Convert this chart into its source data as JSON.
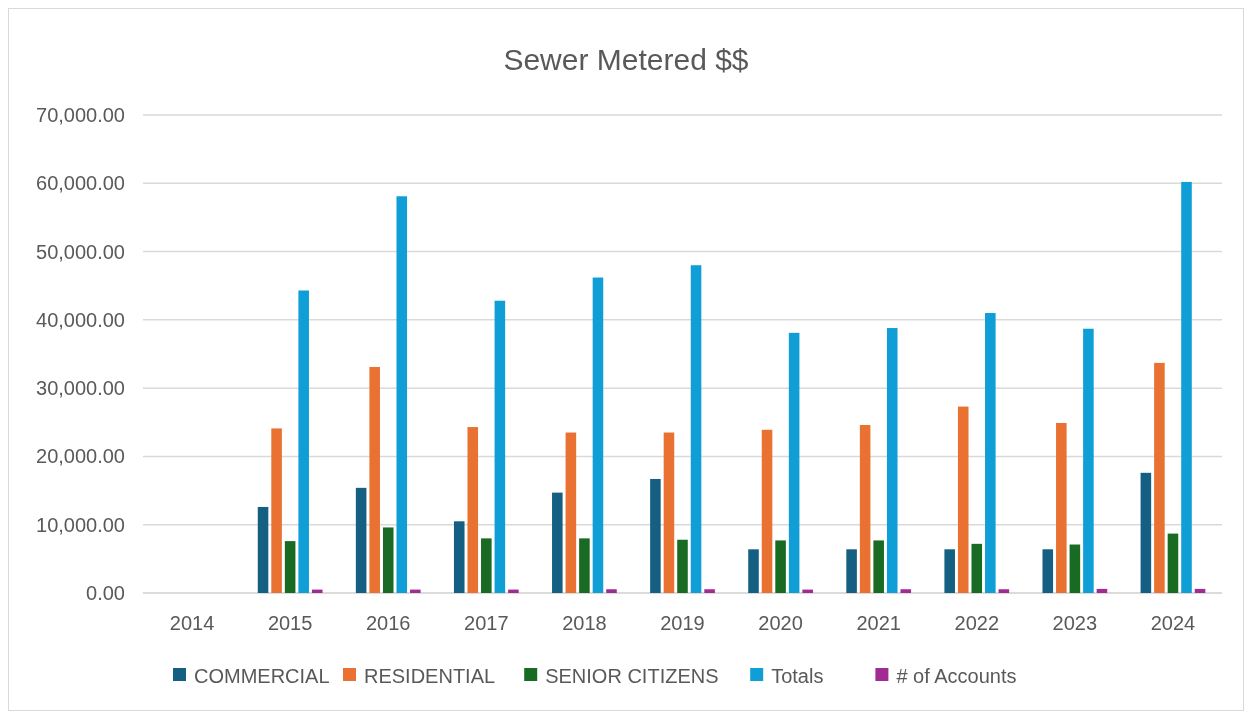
{
  "chart_data": {
    "type": "bar",
    "title": "Sewer Metered $$",
    "categories": [
      "2014",
      "2015",
      "2016",
      "2017",
      "2018",
      "2019",
      "2020",
      "2021",
      "2022",
      "2023",
      "2024"
    ],
    "series": [
      {
        "name": "COMMERCIAL",
        "color": "#156082",
        "values": [
          null,
          12600,
          15400,
          10500,
          14700,
          16700,
          6400,
          6400,
          6400,
          6400,
          17600
        ]
      },
      {
        "name": "RESIDENTIAL",
        "color": "#e97132",
        "values": [
          null,
          24100,
          33100,
          24300,
          23500,
          23500,
          23900,
          24600,
          27300,
          24900,
          33700
        ]
      },
      {
        "name": "SENIOR CITIZENS",
        "color": "#196b24",
        "values": [
          null,
          7600,
          9600,
          8000,
          8000,
          7800,
          7700,
          7700,
          7200,
          7100,
          8700
        ]
      },
      {
        "name": "Totals",
        "color": "#0f9ed5",
        "values": [
          null,
          44300,
          58100,
          42800,
          46200,
          48000,
          38100,
          38800,
          41000,
          38700,
          60200
        ]
      },
      {
        "name": "# of Accounts",
        "color": "#a02b93",
        "values": [
          null,
          500,
          500,
          500,
          550,
          550,
          500,
          550,
          550,
          600,
          600
        ]
      }
    ],
    "ylim": [
      0,
      70000
    ],
    "yticks": [
      {
        "value": 0,
        "label": "0.00"
      },
      {
        "value": 10000,
        "label": "10,000.00"
      },
      {
        "value": 20000,
        "label": "20,000.00"
      },
      {
        "value": 30000,
        "label": "30,000.00"
      },
      {
        "value": 40000,
        "label": "40,000.00"
      },
      {
        "value": 50000,
        "label": "50,000.00"
      },
      {
        "value": 60000,
        "label": "60,000.00"
      },
      {
        "value": 70000,
        "label": "70,000.00"
      }
    ],
    "grid": "y",
    "legend": "bottom"
  }
}
